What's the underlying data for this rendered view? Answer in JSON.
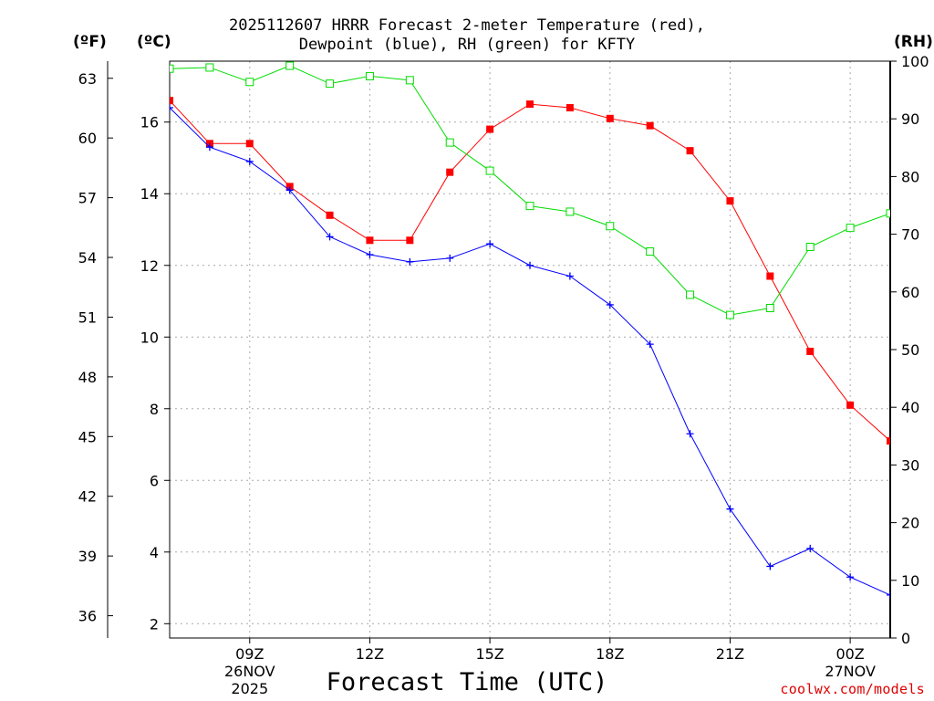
{
  "title_line1": "2025112607 HRRR Forecast 2-meter Temperature (red),",
  "title_line2": "Dewpoint (blue), RH (green) for KFTY",
  "unit_f": "(ºF)",
  "unit_c": "(ºC)",
  "unit_rh": "(RH)",
  "x_axis_title": "Forecast Time (UTC)",
  "credit": "coolwx.com/models",
  "chart_data": {
    "type": "line",
    "title": "2025112607 HRRR Forecast 2-meter Temperature (red), Dewpoint (blue), RH (green) for KFTY",
    "xlabel": "Forecast Time (UTC)",
    "x_hours": [
      7,
      8,
      9,
      10,
      11,
      12,
      13,
      14,
      15,
      16,
      17,
      18,
      19,
      20,
      21,
      22,
      23,
      24,
      25
    ],
    "xlim": [
      7,
      25
    ],
    "ticks": [
      {
        "hour": 9,
        "lines": [
          "09Z",
          "26NOV",
          "2025"
        ]
      },
      {
        "hour": 12,
        "lines": [
          "12Z"
        ]
      },
      {
        "hour": 15,
        "lines": [
          "15Z"
        ]
      },
      {
        "hour": 18,
        "lines": [
          "18Z"
        ]
      },
      {
        "hour": 21,
        "lines": [
          "21Z"
        ]
      },
      {
        "hour": 24,
        "lines": [
          "00Z",
          "27NOV"
        ]
      }
    ],
    "celsius_axis": {
      "label": "(ºC)",
      "min": 1.6,
      "max": 17.7,
      "ticks": [
        2,
        4,
        6,
        8,
        10,
        12,
        14,
        16
      ]
    },
    "fahrenheit_axis": {
      "label": "(ºF)",
      "ticks": [
        36,
        39,
        42,
        45,
        48,
        51,
        54,
        57,
        60,
        63
      ]
    },
    "rh_axis": {
      "label": "(RH)",
      "min": 0,
      "max": 100,
      "ticks": [
        0,
        10,
        20,
        30,
        40,
        50,
        60,
        70,
        80,
        90,
        100
      ]
    },
    "series": [
      {
        "name": "Temperature",
        "unit": "C",
        "color": "#ff0000",
        "marker": "filled-square",
        "values": [
          16.6,
          15.4,
          15.4,
          14.2,
          13.4,
          12.7,
          12.7,
          14.6,
          15.8,
          16.5,
          16.4,
          16.1,
          15.9,
          15.2,
          13.8,
          11.7,
          9.6,
          8.1,
          7.1
        ]
      },
      {
        "name": "Dewpoint",
        "unit": "C",
        "color": "#0000ff",
        "marker": "plus",
        "values": [
          16.4,
          15.3,
          14.9,
          14.1,
          12.8,
          12.3,
          12.1,
          12.2,
          12.6,
          12.0,
          11.7,
          10.9,
          9.8,
          7.3,
          5.2,
          3.6,
          4.1,
          3.3,
          2.8
        ]
      },
      {
        "name": "RH",
        "unit": "%",
        "color": "#00dd00",
        "marker": "open-square",
        "values": [
          98.7,
          98.9,
          96.4,
          99.2,
          96.1,
          97.4,
          96.7,
          85.9,
          81.0,
          74.9,
          73.9,
          71.4,
          67.0,
          59.5,
          56.0,
          57.2,
          67.8,
          71.1,
          73.6
        ]
      }
    ]
  }
}
